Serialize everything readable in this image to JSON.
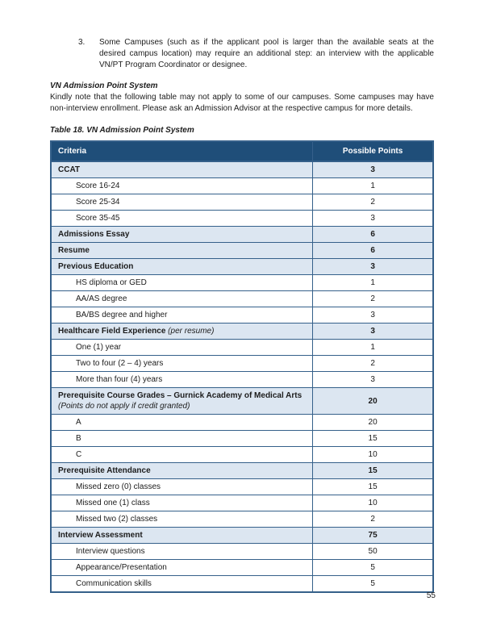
{
  "page": {
    "number": "55"
  },
  "list_item": {
    "number": "3.",
    "text": "Some Campuses (such as if the applicant pool is larger than the available seats at the desired campus location) may require an additional step: an interview with the applicable VN/PT Program Coordinator or designee."
  },
  "section": {
    "heading": "VN Admission Point System",
    "body": "Kindly note that the following table may not apply to some of our campuses. Some campuses may have non-interview enrollment. Please ask an Admission Advisor at the respective campus for more details."
  },
  "table": {
    "caption": "Table 18. VN Admission Point System",
    "columns": [
      "Criteria",
      "Possible Points"
    ],
    "rows": [
      {
        "label": "CCAT",
        "points": "3",
        "category": true
      },
      {
        "label": "Score 16-24",
        "points": "1",
        "category": false
      },
      {
        "label": "Score 25-34",
        "points": "2",
        "category": false
      },
      {
        "label": "Score 35-45",
        "points": "3",
        "category": false
      },
      {
        "label": "Admissions Essay",
        "points": "6",
        "category": true
      },
      {
        "label": "Resume",
        "points": "6",
        "category": true
      },
      {
        "label": "Previous Education",
        "points": "3",
        "category": true
      },
      {
        "label": "HS diploma or GED",
        "points": "1",
        "category": false
      },
      {
        "label": "AA/AS degree",
        "points": "2",
        "category": false
      },
      {
        "label": "BA/BS degree and higher",
        "points": "3",
        "category": false
      },
      {
        "label": "Healthcare Field Experience",
        "italic": "(per resume)",
        "italic_block": false,
        "points": "3",
        "category": true
      },
      {
        "label": "One (1) year",
        "points": "1",
        "category": false
      },
      {
        "label": "Two to four (2 – 4) years",
        "points": "2",
        "category": false
      },
      {
        "label": "More than four (4) years",
        "points": "3",
        "category": false
      },
      {
        "label": "Prerequisite Course Grades – Gurnick Academy of Medical Arts",
        "italic": "(Points do not apply if credit granted)",
        "italic_block": true,
        "points": "20",
        "category": true
      },
      {
        "label": "A",
        "points": "20",
        "category": false
      },
      {
        "label": "B",
        "points": "15",
        "category": false
      },
      {
        "label": "C",
        "points": "10",
        "category": false
      },
      {
        "label": "Prerequisite Attendance",
        "points": "15",
        "category": true
      },
      {
        "label": "Missed zero (0) classes",
        "points": "15",
        "category": false
      },
      {
        "label": "Missed one (1) class",
        "points": "10",
        "category": false
      },
      {
        "label": "Missed two (2) classes",
        "points": "2",
        "category": false
      },
      {
        "label": "Interview Assessment",
        "points": "75",
        "category": true
      },
      {
        "label": "Interview questions",
        "points": "50",
        "category": false
      },
      {
        "label": "Appearance/Presentation",
        "points": "5",
        "category": false
      },
      {
        "label": "Communication skills",
        "points": "5",
        "category": false
      }
    ]
  },
  "colors": {
    "header_bg": "#1F4E79",
    "header_text": "#FFFFFF",
    "category_row_bg": "#DCE6F1",
    "border": "#35608A"
  }
}
